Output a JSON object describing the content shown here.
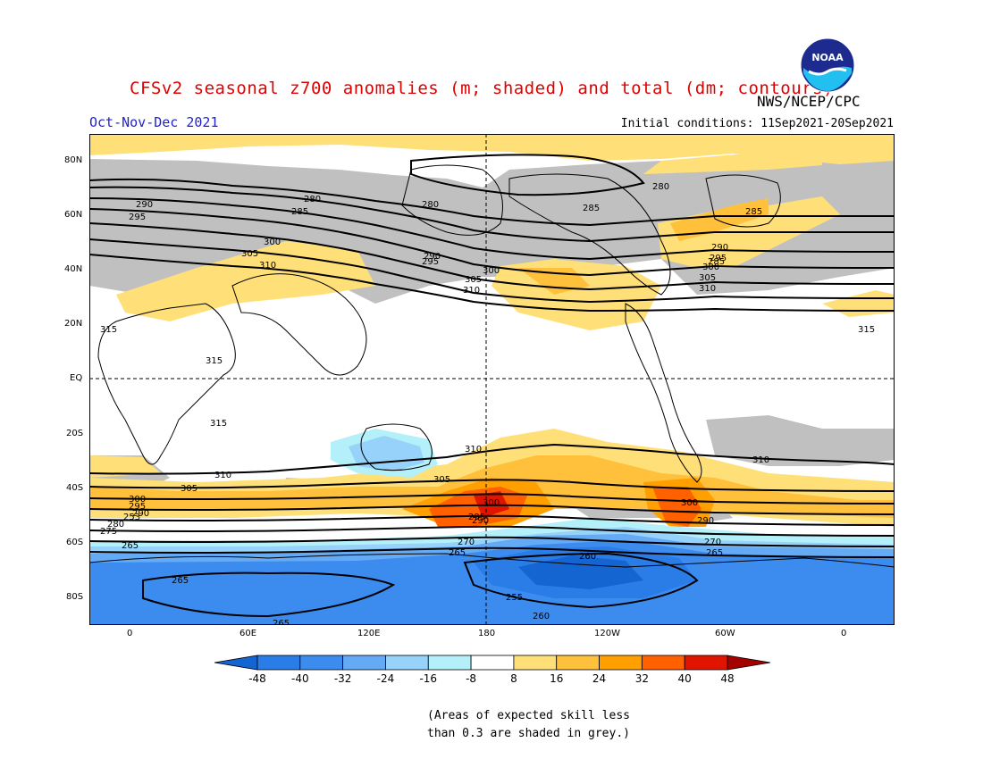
{
  "title": "CFSv2 seasonal z700 anomalies (m; shaded) and total (dm; contours)",
  "agency": "NWS/NCEP/CPC",
  "logo_text": "NOAA",
  "season": "Oct-Nov-Dec 2021",
  "initial_conditions": "Initial conditions: 11Sep2021-20Sep2021",
  "skill_note": [
    "(Areas of expected skill less",
    "than 0.3 are shaded in grey.)"
  ],
  "lat_labels": [
    "80N",
    "60N",
    "40N",
    "20N",
    "EQ",
    "20S",
    "40S",
    "60S",
    "80S"
  ],
  "lon_labels": [
    "0",
    "60E",
    "120E",
    "180",
    "120W",
    "60W",
    "0"
  ],
  "colorbar": {
    "ticks": [
      "-48",
      "-40",
      "-32",
      "-24",
      "-16",
      "-8",
      "8",
      "16",
      "24",
      "32",
      "40",
      "48"
    ],
    "colors": [
      "#1464d2",
      "#2a7ce6",
      "#3c8cf0",
      "#64aaf5",
      "#96d2fa",
      "#b4f0fa",
      "#ffffff",
      "#ffe078",
      "#ffc03c",
      "#ffa000",
      "#ff6000",
      "#e11400",
      "#a50000"
    ]
  },
  "contour_labels": [
    "315",
    "310",
    "305",
    "300",
    "295",
    "290",
    "285",
    "280",
    "275",
    "270",
    "265",
    "260",
    "255",
    "253"
  ],
  "colors": {
    "skill_grey": "#c0c0c0",
    "title": "#e00000",
    "season": "#2222cc"
  }
}
